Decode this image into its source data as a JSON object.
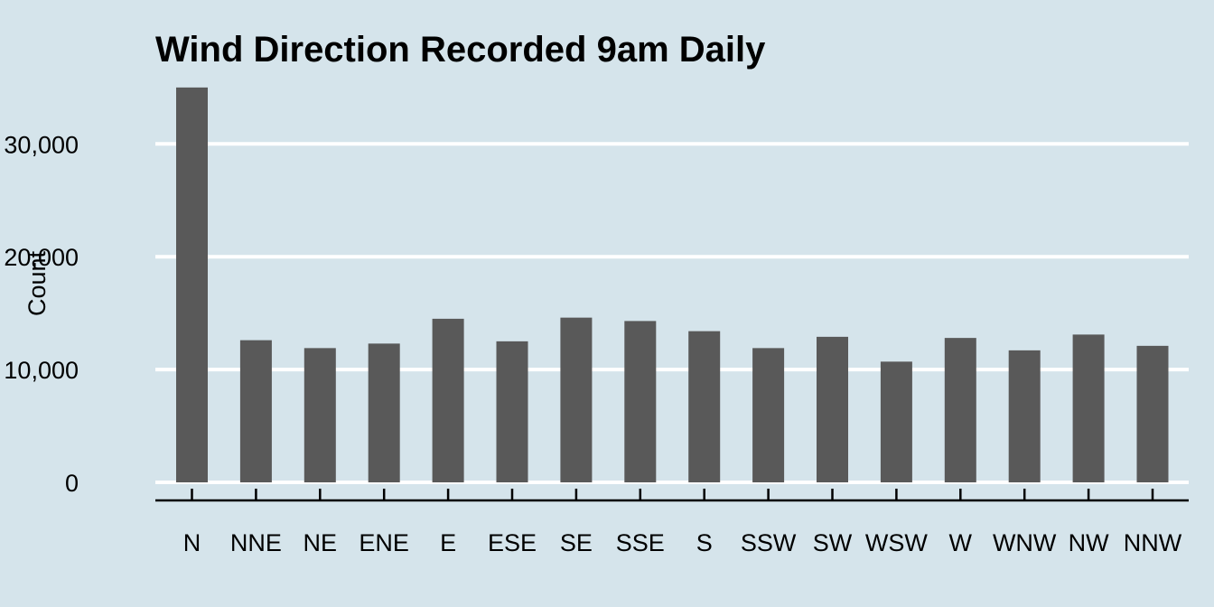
{
  "chart_data": {
    "type": "bar",
    "title": "Wind Direction Recorded 9am Daily",
    "xlabel": "",
    "ylabel": "Count",
    "categories": [
      "N",
      "NNE",
      "NE",
      "ENE",
      "E",
      "ESE",
      "SE",
      "SSE",
      "S",
      "SSW",
      "SW",
      "WSW",
      "W",
      "WNW",
      "NW",
      "NNW"
    ],
    "values": [
      35000,
      12600,
      11900,
      12300,
      14500,
      12500,
      14600,
      14300,
      13400,
      11900,
      12900,
      10700,
      12800,
      11700,
      13100,
      12100
    ],
    "yticks": [
      0,
      10000,
      20000,
      30000
    ],
    "ytick_labels": [
      "0",
      "10,000",
      "20,000",
      "30,000"
    ],
    "ylim": [
      0,
      35000
    ],
    "grid": true,
    "legend": "none",
    "colors": {
      "background": "#d5e4eb",
      "bar": "#595959",
      "grid": "#ffffff",
      "axis": "#000000"
    }
  }
}
